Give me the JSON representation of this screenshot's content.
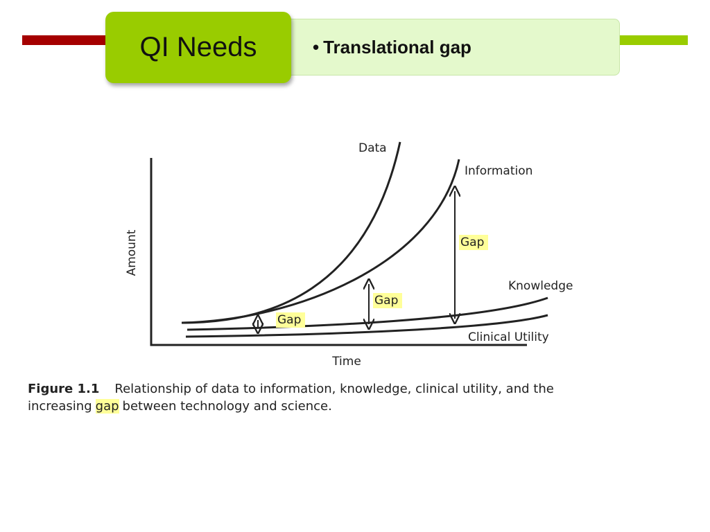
{
  "header": {
    "title": "QI Needs",
    "bullet": "Translational gap"
  },
  "figure": {
    "labels": {
      "data": "Data",
      "information": "Information",
      "knowledge": "Knowledge",
      "clinical_utility": "Clinical Utility"
    },
    "gaps": [
      "Gap",
      "Gap",
      "Gap"
    ],
    "axes": {
      "y": "Amount",
      "x": "Time"
    },
    "caption": {
      "label": "Figure 1.1",
      "text_before": "Relationship of data to information, knowledge, clinical utility, and the increasing",
      "highlight": "gap",
      "text_after": "between technology and science."
    }
  }
}
